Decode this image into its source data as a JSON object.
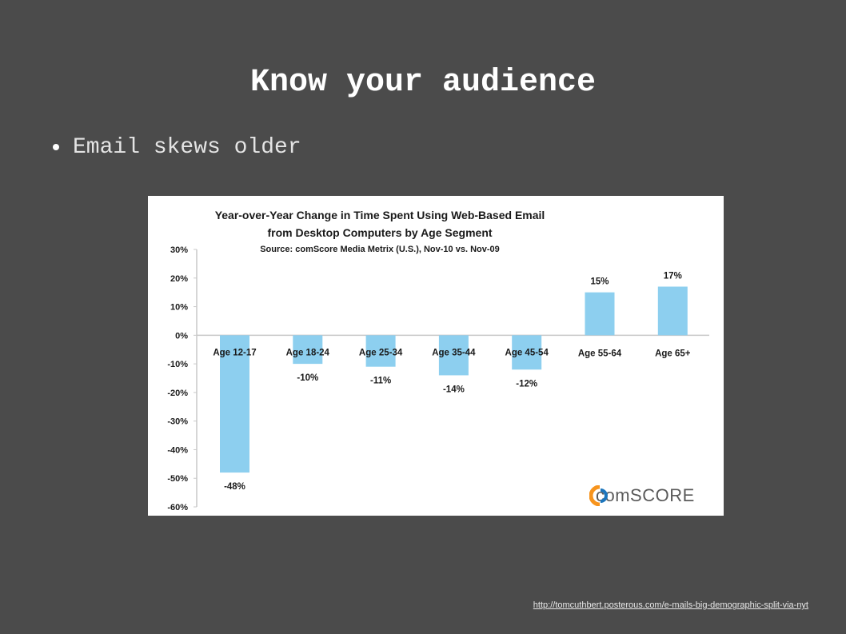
{
  "slide": {
    "title": "Know your audience",
    "bullets": [
      "Email skews older"
    ],
    "source_link": "http://tomcuthbert.posterous.com/e-mails-big-demographic-split-via-nyt"
  },
  "logo": {
    "text": "comSCORE",
    "icon": "comscore-logo-icon",
    "colors": [
      "#f7941d",
      "#1c75bc"
    ]
  },
  "chart_data": {
    "type": "bar",
    "title_lines": [
      "Year-over-Year Change in Time Spent Using Web-Based Email",
      "from Desktop Computers by Age Segment"
    ],
    "subtitle": "Source: comScore Media Metrix (U.S.), Nov-10 vs. Nov-09",
    "categories": [
      "Age 12-17",
      "Age 18-24",
      "Age 25-34",
      "Age 35-44",
      "Age 45-54",
      "Age 55-64",
      "Age 65+"
    ],
    "values": [
      -48,
      -10,
      -11,
      -14,
      -12,
      15,
      17
    ],
    "value_labels": [
      "-48%",
      "-10%",
      "-11%",
      "-14%",
      "-12%",
      "15%",
      "17%"
    ],
    "ylim": [
      -60,
      30
    ],
    "y_ticks": [
      30,
      20,
      10,
      0,
      -10,
      -20,
      -30,
      -40,
      -50,
      -60
    ],
    "y_tick_labels": [
      "30%",
      "20%",
      "10%",
      "0%",
      "-10%",
      "-20%",
      "-30%",
      "-40%",
      "-50%",
      "-60%"
    ],
    "bar_color": "#8dcfef",
    "grid": false,
    "legend": "none"
  }
}
